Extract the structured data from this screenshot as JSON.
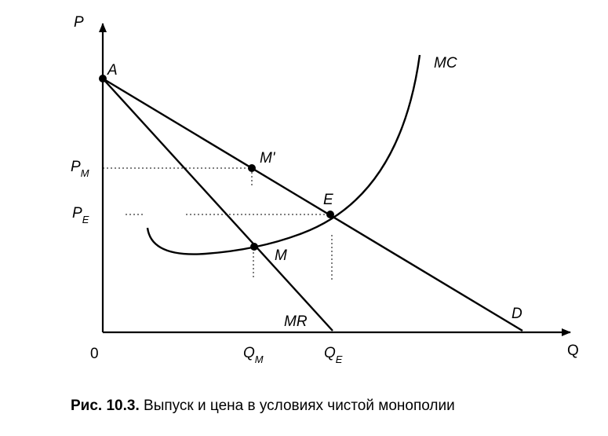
{
  "axes": {
    "y_label": "P",
    "x_label": "Q",
    "origin_label": "0"
  },
  "price_labels": {
    "pm": {
      "main": "P",
      "sub": "M"
    },
    "pe": {
      "main": "P",
      "sub": "E"
    }
  },
  "quantity_labels": {
    "qm": {
      "main": "Q",
      "sub": "M"
    },
    "qe": {
      "main": "Q",
      "sub": "E"
    }
  },
  "curves": {
    "demand": "D",
    "marginal_revenue": "MR",
    "marginal_cost": "MC"
  },
  "points": {
    "a": "A",
    "m_prime": "M'",
    "e": "E",
    "m": "M"
  },
  "caption": {
    "number": "Рис. 10.3.",
    "text": "Выпуск и цена в условиях чистой монополии"
  }
}
